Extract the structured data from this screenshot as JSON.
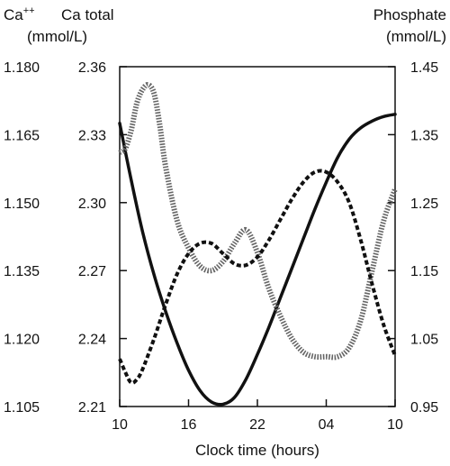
{
  "chart_data": {
    "type": "line",
    "xlabel": "Clock time (hours)",
    "x_ticks": [
      "10",
      "16",
      "22",
      "04",
      "10"
    ],
    "x_range_hours": [
      0,
      24
    ],
    "axes": {
      "left_outer": {
        "label_line1": "Ca",
        "label_sup": "++",
        "label_line2": "(mmol/L)",
        "ticks": [
          "1.180",
          "1.165",
          "1.150",
          "1.135",
          "1.120",
          "1.105"
        ],
        "range": [
          1.105,
          1.18
        ]
      },
      "left_inner": {
        "label_line1": "Ca total",
        "label_line2": "",
        "ticks": [
          "2.36",
          "2.33",
          "2.30",
          "2.27",
          "2.24",
          "2.21"
        ],
        "range": [
          2.21,
          2.36
        ]
      },
      "right": {
        "label_line1": "Phosphate",
        "label_line2": "(mmol/L)",
        "ticks": [
          "1.45",
          "1.35",
          "1.25",
          "1.15",
          "1.05",
          "0.95"
        ],
        "range": [
          0.95,
          1.45
        ]
      }
    },
    "series": [
      {
        "style": "solid",
        "axis": "left_inner",
        "x": [
          0,
          1,
          2,
          3,
          4,
          5,
          6,
          7,
          8,
          9,
          10,
          11,
          12,
          13,
          14,
          15,
          16,
          17,
          18,
          19,
          20,
          21,
          22,
          23,
          24
        ],
        "values": [
          2.335,
          2.31,
          2.287,
          2.268,
          2.252,
          2.238,
          2.226,
          2.217,
          2.212,
          2.211,
          2.214,
          2.222,
          2.233,
          2.245,
          2.258,
          2.271,
          2.284,
          2.297,
          2.309,
          2.32,
          2.328,
          2.333,
          2.336,
          2.338,
          2.339
        ]
      },
      {
        "style": "dotted",
        "axis": "left_outer",
        "x": [
          0,
          0.5,
          1,
          1.5,
          2,
          2.5,
          3,
          3.5,
          4,
          5,
          6,
          7,
          8,
          9,
          10,
          11,
          12,
          13,
          14,
          15,
          16,
          17,
          18,
          19,
          20,
          21,
          22,
          23,
          24
        ],
        "values": [
          1.161,
          1.162,
          1.166,
          1.172,
          1.175,
          1.176,
          1.174,
          1.167,
          1.158,
          1.146,
          1.14,
          1.136,
          1.135,
          1.137,
          1.141,
          1.144,
          1.139,
          1.131,
          1.125,
          1.12,
          1.117,
          1.116,
          1.116,
          1.116,
          1.118,
          1.124,
          1.135,
          1.146,
          1.153
        ]
      },
      {
        "style": "dashed",
        "axis": "right",
        "x": [
          0,
          0.5,
          1,
          1.5,
          2,
          3,
          4,
          5,
          6,
          7,
          8,
          9,
          10,
          11,
          12,
          13,
          14,
          15,
          16,
          17,
          18,
          19,
          20,
          21,
          22,
          23,
          24
        ],
        "values": [
          1.02,
          1.0,
          0.985,
          0.99,
          1.005,
          1.05,
          1.1,
          1.145,
          1.175,
          1.19,
          1.19,
          1.175,
          1.16,
          1.158,
          1.17,
          1.195,
          1.225,
          1.255,
          1.28,
          1.295,
          1.295,
          1.28,
          1.25,
          1.195,
          1.13,
          1.07,
          1.025
        ]
      }
    ]
  }
}
